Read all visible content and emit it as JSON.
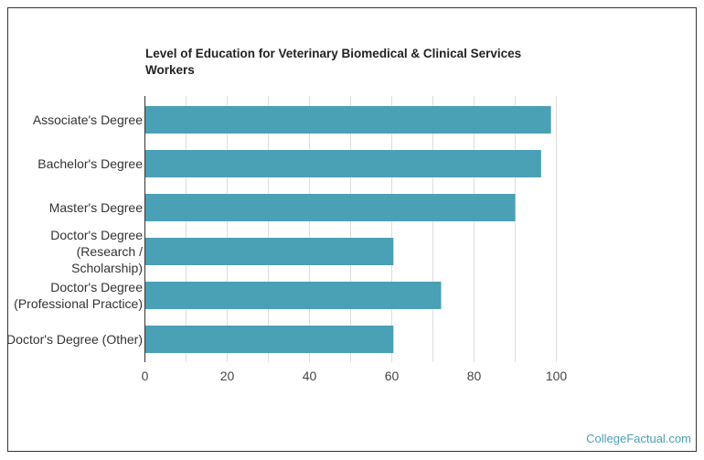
{
  "chart_data": {
    "type": "bar",
    "orientation": "horizontal",
    "title": "Level of Education for Veterinary Biomedical & Clinical Services Workers",
    "categories": [
      "Associate's Degree",
      "Bachelor's Degree",
      "Master's Degree",
      "Doctor's Degree (Research / Scholarship)",
      "Doctor's Degree (Professional Practice)",
      "Doctor's Degree (Other)"
    ],
    "category_lines": [
      [
        "Associate's Degree"
      ],
      [
        "Bachelor's Degree"
      ],
      [
        "Master's Degree"
      ],
      [
        "Doctor's Degree",
        "(Research /",
        "Scholarship)"
      ],
      [
        "Doctor's Degree",
        "(Professional Practice)"
      ],
      [
        "Doctor's Degree (Other)"
      ]
    ],
    "values": [
      98.7,
      96.3,
      90,
      60.4,
      72,
      60.4
    ],
    "xlim": [
      0,
      100
    ],
    "xticks": [
      0,
      20,
      40,
      60,
      80,
      100
    ],
    "grid": true,
    "bar_color": "#4aa0b5"
  },
  "credit": "CollegeFactual.com"
}
